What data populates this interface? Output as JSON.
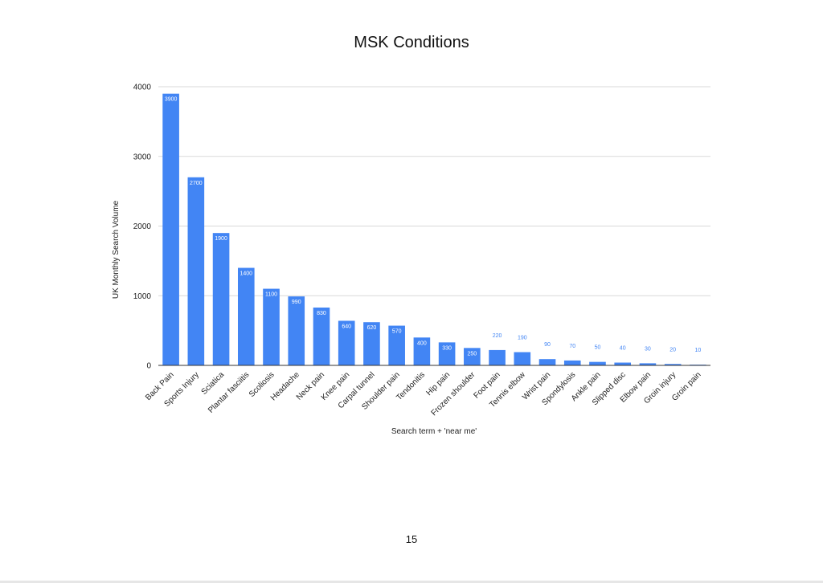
{
  "chart_data": {
    "type": "bar",
    "title": "MSK Conditions",
    "xlabel": "Search term + 'near me'",
    "ylabel": "UK Monthly Search Volume",
    "ylim": [
      0,
      4000
    ],
    "yticks": [
      0,
      1000,
      2000,
      3000,
      4000
    ],
    "grid": true,
    "legend": "none",
    "bar_color": "#4285f4",
    "categories": [
      "Back Pain",
      "Sports Injury",
      "Sciatica",
      "Plantar fasciitis",
      "Scoliosis",
      "Headache",
      "Neck pain",
      "Knee pain",
      "Carpal tunnel",
      "Shoulder pain",
      "Tendonitis",
      "Hip pain",
      "Frozen shoulder",
      "Foot pain",
      "Tennis elbow",
      "Wrist pain",
      "Spondylosis",
      "Ankle pain",
      "Slipped disc",
      "Elbow pain",
      "Groin injury",
      "Groin pain"
    ],
    "values": [
      3900,
      2700,
      1900,
      1400,
      1100,
      990,
      830,
      640,
      620,
      570,
      400,
      330,
      250,
      220,
      190,
      90,
      70,
      50,
      40,
      30,
      20,
      10
    ]
  },
  "page": {
    "number": "15"
  }
}
